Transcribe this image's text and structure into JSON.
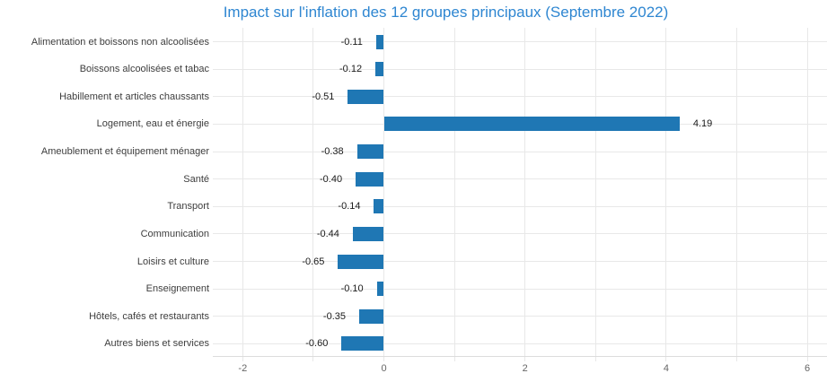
{
  "chart_data": {
    "type": "bar",
    "orientation": "horizontal",
    "title": "Impact sur l'inflation des 12 groupes principaux (Septembre 2022)",
    "categories": [
      "Alimentation et boissons non alcoolisées",
      "Boissons alcoolisées et tabac",
      "Habillement et articles chaussants",
      "Logement, eau et énergie",
      "Ameublement et équipement ménager",
      "Santé",
      "Transport",
      "Communication",
      "Loisirs et culture",
      "Enseignement",
      "Hôtels, cafés et restaurants",
      "Autres biens et services"
    ],
    "values": [
      -0.11,
      -0.12,
      -0.51,
      4.19,
      -0.38,
      -0.4,
      -0.14,
      -0.44,
      -0.65,
      -0.1,
      -0.35,
      -0.6
    ],
    "value_labels": [
      "-0.11",
      "-0.12",
      "-0.51",
      "4.19",
      "-0.38",
      "-0.40",
      "-0.14",
      "-0.44",
      "-0.65",
      "-0.10",
      "-0.35",
      "-0.60"
    ],
    "xlabel": "",
    "ylabel": "",
    "xlim": [
      -2.42,
      6.28
    ],
    "x_ticks_grid": [
      -2,
      -1,
      0,
      1,
      2,
      3,
      4,
      5,
      6
    ],
    "x_ticks_labeled": [
      -2,
      0,
      2,
      4,
      6
    ],
    "grid": "on",
    "legend": "none",
    "colors": {
      "bar": "#1f77b4",
      "title": "#2e86d1",
      "category_label": "#3d3d3d",
      "value_label": "#1a1a1a",
      "tick_label": "#666666",
      "gridline": "#e8e8e8",
      "axis_line": "#dcdcdc"
    }
  }
}
